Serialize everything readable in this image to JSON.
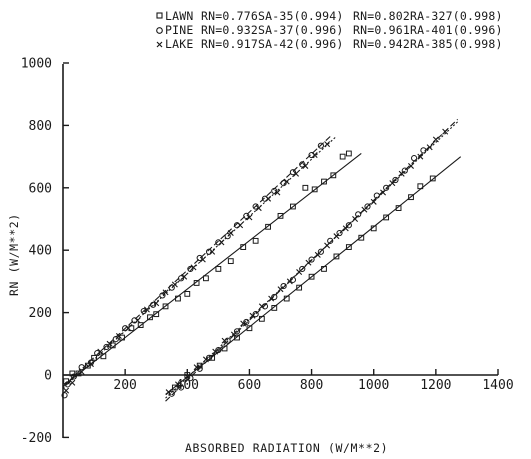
{
  "chart_data": {
    "type": "scatter",
    "xlabel": "ABSORBED RADIATION (W/M**2)",
    "ylabel": "RN (W/M**2)",
    "xlim": [
      0,
      1400
    ],
    "ylim": [
      -200,
      1000
    ],
    "x_ticks": [
      "200",
      "400",
      "600",
      "800",
      "1000",
      "1200",
      "1400"
    ],
    "y_ticks": [
      "-200",
      "0",
      "200",
      "400",
      "600",
      "800",
      "1000"
    ],
    "grid": false,
    "legend_position": "top",
    "legend": [
      {
        "marker": "square",
        "label": "LAWN",
        "eq1": "RN=0.776SA-35(0.994)",
        "eq2": "RN=0.802RA-327(0.998)"
      },
      {
        "marker": "circle",
        "label": "PINE",
        "eq1": "RN=0.932SA-37(0.996)",
        "eq2": "RN=0.961RA-401(0.996)"
      },
      {
        "marker": "x",
        "label": "LAKE",
        "eq1": "RN=0.917SA-42(0.996)",
        "eq2": "RN=0.942RA-385(0.998)"
      }
    ],
    "series": [
      {
        "name": "LAWN SA",
        "marker": "square",
        "slope": 0.776,
        "intercept": -35,
        "x_range": [
          0,
          960
        ],
        "points": [
          [
            10,
            -20
          ],
          [
            30,
            5
          ],
          [
            50,
            5
          ],
          [
            80,
            30
          ],
          [
            100,
            55
          ],
          [
            130,
            60
          ],
          [
            160,
            95
          ],
          [
            190,
            120
          ],
          [
            220,
            150
          ],
          [
            250,
            160
          ],
          [
            280,
            185
          ],
          [
            300,
            195
          ],
          [
            330,
            220
          ],
          [
            370,
            245
          ],
          [
            400,
            260
          ],
          [
            430,
            295
          ],
          [
            460,
            310
          ],
          [
            500,
            340
          ],
          [
            540,
            365
          ],
          [
            580,
            410
          ],
          [
            620,
            430
          ],
          [
            660,
            475
          ],
          [
            700,
            510
          ],
          [
            740,
            540
          ],
          [
            780,
            600
          ],
          [
            810,
            595
          ],
          [
            840,
            620
          ],
          [
            870,
            640
          ],
          [
            900,
            700
          ],
          [
            920,
            710
          ]
        ]
      },
      {
        "name": "PINE SA",
        "marker": "circle",
        "slope": 0.932,
        "intercept": -37,
        "x_range": [
          0,
          860
        ],
        "points": [
          [
            5,
            -65
          ],
          [
            15,
            -30
          ],
          [
            35,
            -5
          ],
          [
            60,
            25
          ],
          [
            90,
            40
          ],
          [
            110,
            70
          ],
          [
            140,
            90
          ],
          [
            170,
            115
          ],
          [
            200,
            150
          ],
          [
            230,
            175
          ],
          [
            260,
            205
          ],
          [
            290,
            225
          ],
          [
            320,
            255
          ],
          [
            350,
            280
          ],
          [
            380,
            310
          ],
          [
            410,
            340
          ],
          [
            440,
            375
          ],
          [
            470,
            395
          ],
          [
            500,
            425
          ],
          [
            530,
            445
          ],
          [
            560,
            480
          ],
          [
            590,
            510
          ],
          [
            620,
            540
          ],
          [
            650,
            565
          ],
          [
            680,
            590
          ],
          [
            710,
            615
          ],
          [
            740,
            650
          ],
          [
            770,
            675
          ],
          [
            800,
            705
          ],
          [
            830,
            735
          ]
        ]
      },
      {
        "name": "LAKE SA",
        "marker": "x",
        "slope": 0.917,
        "intercept": -42,
        "x_range": [
          0,
          880
        ],
        "points": [
          [
            10,
            -50
          ],
          [
            30,
            -25
          ],
          [
            60,
            10
          ],
          [
            90,
            35
          ],
          [
            120,
            75
          ],
          [
            150,
            100
          ],
          [
            180,
            125
          ],
          [
            210,
            150
          ],
          [
            240,
            175
          ],
          [
            270,
            210
          ],
          [
            300,
            230
          ],
          [
            330,
            265
          ],
          [
            360,
            290
          ],
          [
            390,
            315
          ],
          [
            420,
            345
          ],
          [
            450,
            370
          ],
          [
            480,
            395
          ],
          [
            510,
            425
          ],
          [
            540,
            455
          ],
          [
            570,
            480
          ],
          [
            600,
            505
          ],
          [
            630,
            535
          ],
          [
            660,
            565
          ],
          [
            690,
            585
          ],
          [
            720,
            620
          ],
          [
            750,
            645
          ],
          [
            780,
            670
          ],
          [
            810,
            705
          ],
          [
            850,
            740
          ]
        ]
      },
      {
        "name": "LAWN RA",
        "marker": "square",
        "slope": 0.802,
        "intercept": -327,
        "x_range": [
          330,
          1280
        ],
        "points": [
          [
            360,
            -40
          ],
          [
            400,
            0
          ],
          [
            440,
            30
          ],
          [
            480,
            55
          ],
          [
            520,
            85
          ],
          [
            560,
            120
          ],
          [
            600,
            150
          ],
          [
            640,
            180
          ],
          [
            680,
            215
          ],
          [
            720,
            245
          ],
          [
            760,
            280
          ],
          [
            800,
            315
          ],
          [
            840,
            340
          ],
          [
            880,
            380
          ],
          [
            920,
            410
          ],
          [
            960,
            440
          ],
          [
            1000,
            470
          ],
          [
            1040,
            505
          ],
          [
            1080,
            535
          ],
          [
            1120,
            570
          ],
          [
            1150,
            605
          ],
          [
            1190,
            630
          ]
        ]
      },
      {
        "name": "PINE RA",
        "marker": "circle",
        "slope": 0.961,
        "intercept": -401,
        "x_range": [
          330,
          1270
        ],
        "points": [
          [
            350,
            -60
          ],
          [
            380,
            -40
          ],
          [
            410,
            -10
          ],
          [
            440,
            20
          ],
          [
            470,
            55
          ],
          [
            500,
            80
          ],
          [
            530,
            110
          ],
          [
            560,
            140
          ],
          [
            590,
            170
          ],
          [
            620,
            195
          ],
          [
            650,
            220
          ],
          [
            680,
            250
          ],
          [
            710,
            285
          ],
          [
            740,
            305
          ],
          [
            770,
            340
          ],
          [
            800,
            370
          ],
          [
            830,
            395
          ],
          [
            860,
            430
          ],
          [
            890,
            455
          ],
          [
            920,
            480
          ],
          [
            950,
            515
          ],
          [
            980,
            540
          ],
          [
            1010,
            575
          ],
          [
            1040,
            600
          ],
          [
            1070,
            625
          ],
          [
            1100,
            655
          ],
          [
            1130,
            695
          ],
          [
            1160,
            720
          ]
        ]
      },
      {
        "name": "LAKE RA",
        "marker": "x",
        "slope": 0.942,
        "intercept": -385,
        "x_range": [
          330,
          1270
        ],
        "points": [
          [
            340,
            -55
          ],
          [
            370,
            -30
          ],
          [
            400,
            -5
          ],
          [
            430,
            25
          ],
          [
            460,
            50
          ],
          [
            490,
            75
          ],
          [
            520,
            110
          ],
          [
            550,
            130
          ],
          [
            580,
            165
          ],
          [
            610,
            190
          ],
          [
            640,
            220
          ],
          [
            670,
            245
          ],
          [
            700,
            275
          ],
          [
            730,
            300
          ],
          [
            760,
            330
          ],
          [
            790,
            360
          ],
          [
            820,
            385
          ],
          [
            850,
            415
          ],
          [
            880,
            445
          ],
          [
            910,
            470
          ],
          [
            940,
            500
          ],
          [
            970,
            530
          ],
          [
            1000,
            555
          ],
          [
            1030,
            585
          ],
          [
            1060,
            615
          ],
          [
            1090,
            645
          ],
          [
            1120,
            670
          ],
          [
            1150,
            700
          ],
          [
            1180,
            730
          ],
          [
            1200,
            755
          ],
          [
            1230,
            780
          ]
        ]
      }
    ]
  }
}
